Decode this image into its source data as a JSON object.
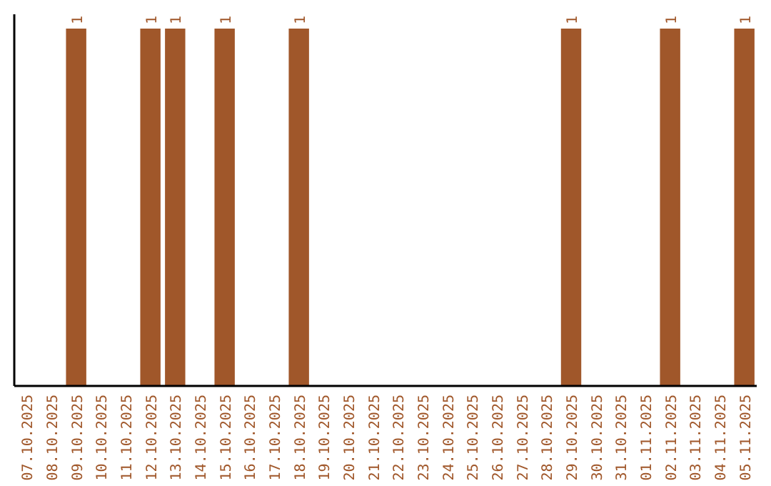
{
  "chart_data": {
    "type": "bar",
    "categories": [
      "07.10.2025",
      "08.10.2025",
      "09.10.2025",
      "10.10.2025",
      "11.10.2025",
      "12.10.2025",
      "13.10.2025",
      "14.10.2025",
      "15.10.2025",
      "16.10.2025",
      "17.10.2025",
      "18.10.2025",
      "19.10.2025",
      "20.10.2025",
      "21.10.2025",
      "22.10.2025",
      "23.10.2025",
      "24.10.2025",
      "25.10.2025",
      "26.10.2025",
      "27.10.2025",
      "28.10.2025",
      "29.10.2025",
      "30.10.2025",
      "31.10.2025",
      "01.11.2025",
      "02.11.2025",
      "03.11.2025",
      "04.11.2025",
      "05.11.2025"
    ],
    "values": [
      0,
      0,
      1,
      0,
      0,
      1,
      1,
      0,
      1,
      0,
      0,
      1,
      0,
      0,
      0,
      0,
      0,
      0,
      0,
      0,
      0,
      0,
      1,
      0,
      0,
      0,
      1,
      0,
      0,
      1
    ],
    "value_labels": [
      null,
      null,
      "1",
      null,
      null,
      "1",
      "1",
      null,
      "1",
      null,
      null,
      "1",
      null,
      null,
      null,
      null,
      null,
      null,
      null,
      null,
      null,
      null,
      "1",
      null,
      null,
      null,
      "1",
      null,
      null,
      "1"
    ],
    "color": "#a0572a",
    "tick_labels": "x"
  }
}
